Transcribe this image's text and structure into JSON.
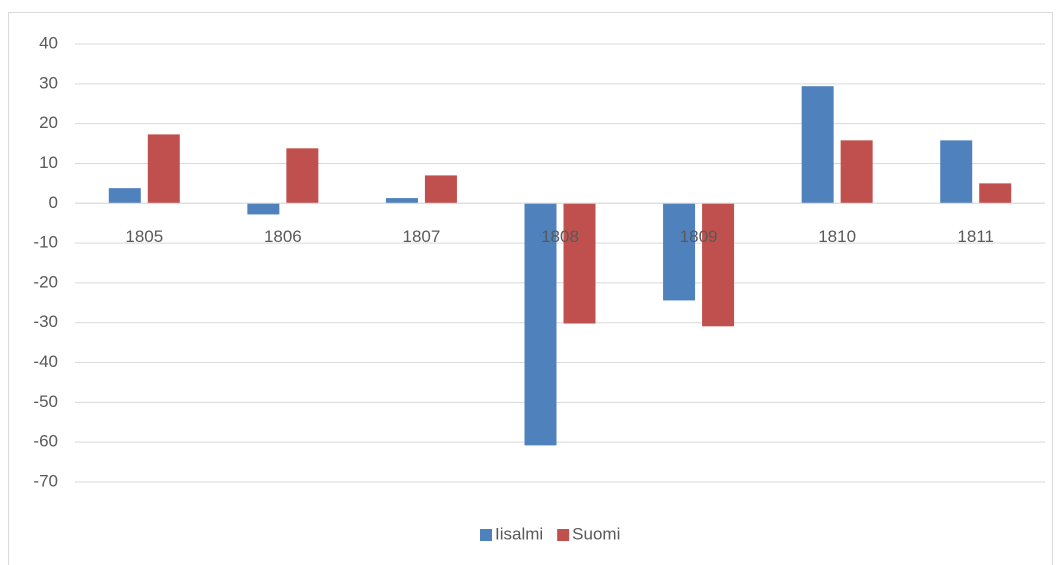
{
  "chart_data": {
    "type": "bar",
    "categories": [
      "1805",
      "1806",
      "1807",
      "1808",
      "1809",
      "1810",
      "1811"
    ],
    "series": [
      {
        "name": "Iisalmi",
        "color": "#4f81bd",
        "values": [
          3.8,
          -2.8,
          1.3,
          -60.8,
          -24.4,
          29.4,
          15.8
        ]
      },
      {
        "name": "Suomi",
        "color": "#c0504d",
        "values": [
          17.3,
          13.8,
          7.0,
          -30.2,
          -30.9,
          15.8,
          5.0
        ]
      }
    ],
    "ylim": [
      -70,
      40
    ],
    "yticks": [
      40,
      30,
      20,
      10,
      0,
      -10,
      -20,
      -30,
      -40,
      -50,
      -60,
      -70
    ],
    "grid": true,
    "legend": "bottom"
  }
}
